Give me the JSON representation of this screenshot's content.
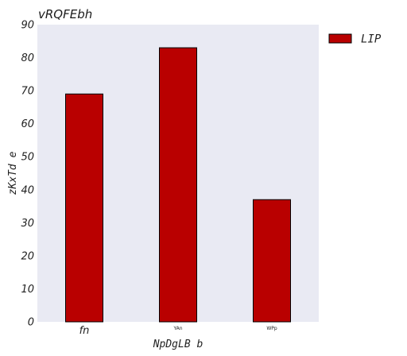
{
  "chart_data": {
    "type": "bar",
    "title": "vRQFEbh",
    "xlabel": "NpDgLB  b",
    "ylabel": "zKxTd  e",
    "categories": [
      "fn",
      "YAn",
      "WPp"
    ],
    "category_label_sizes": [
      "large",
      "tiny",
      "tiny"
    ],
    "series": [
      {
        "name": "LIP",
        "values": [
          69,
          83,
          37
        ],
        "color": "#b90000"
      }
    ],
    "ylim": [
      0,
      90
    ],
    "yticks": [
      0,
      10,
      20,
      30,
      40,
      50,
      60,
      70,
      80,
      90
    ],
    "grid": false,
    "background": "#e9eaf3",
    "legend_position": "top-right-outside"
  }
}
